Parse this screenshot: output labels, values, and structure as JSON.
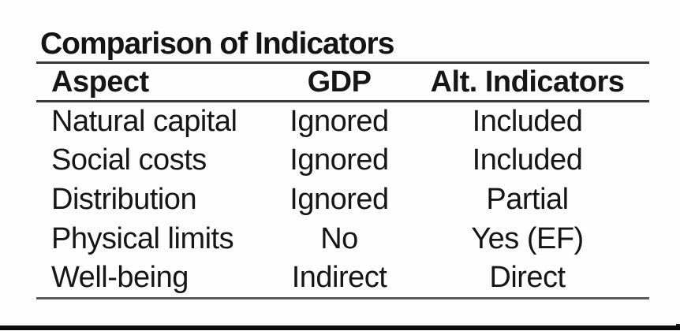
{
  "slide": {
    "title": "Comparison of Indicators"
  },
  "table": {
    "headers": {
      "aspect": "Aspect",
      "gdp": "GDP",
      "alt": "Alt. Indicators"
    },
    "rows": [
      {
        "aspect": "Natural capital",
        "gdp": "Ignored",
        "alt": "Included"
      },
      {
        "aspect": "Social costs",
        "gdp": "Ignored",
        "alt": "Included"
      },
      {
        "aspect": "Distribution",
        "gdp": "Ignored",
        "alt": "Partial"
      },
      {
        "aspect": "Physical limits",
        "gdp": "No",
        "alt": "Yes (EF)"
      },
      {
        "aspect": "Well-being",
        "gdp": "Indirect",
        "alt": "Direct"
      }
    ]
  },
  "colors": {
    "background": "#fdfdfd",
    "text": "#161616",
    "rule_dark": "#383838",
    "rule_light": "#5c5c5c",
    "bottom_bar": "#0c0c0c"
  }
}
